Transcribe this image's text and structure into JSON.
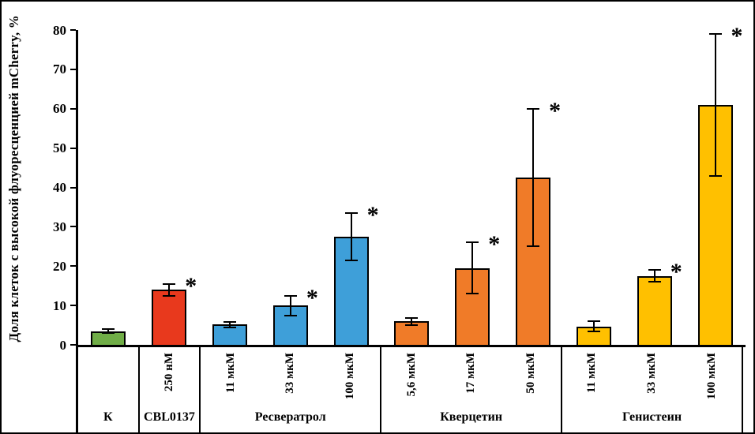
{
  "chart_data": {
    "type": "bar",
    "title": "",
    "ylabel": "Доля клеток с высокой флуоресценцией mCherry, %",
    "xlabel": "",
    "ylim": [
      0,
      80
    ],
    "yticks": [
      0,
      10,
      20,
      30,
      40,
      50,
      60,
      70,
      80
    ],
    "grid": false,
    "legend": "none",
    "significance_marker": "*",
    "groups": [
      {
        "name": "К",
        "color": "#70AD47",
        "bars": [
          {
            "label": "",
            "value": 3.5,
            "error": 0.5,
            "significant": false
          }
        ]
      },
      {
        "name": "CBL0137",
        "color": "#E8391D",
        "bars": [
          {
            "label": "250 нМ",
            "value": 14,
            "error": 1.5,
            "significant": true
          }
        ]
      },
      {
        "name": "Ресвератрол",
        "color": "#3E9FD9",
        "bars": [
          {
            "label": "11 мкМ",
            "value": 5.2,
            "error": 0.7,
            "significant": false
          },
          {
            "label": "33 мкМ",
            "value": 10,
            "error": 2.5,
            "significant": true
          },
          {
            "label": "100 мкМ",
            "value": 27.5,
            "error": 6,
            "significant": true
          }
        ]
      },
      {
        "name": "Кверцетин",
        "color": "#F07B28",
        "bars": [
          {
            "label": "5,6 мкМ",
            "value": 6,
            "error": 0.9,
            "significant": false
          },
          {
            "label": "17 мкМ",
            "value": 19.5,
            "error": 6.5,
            "significant": true
          },
          {
            "label": "50 мкМ",
            "value": 42.5,
            "error": 17.5,
            "significant": true
          }
        ]
      },
      {
        "name": "Генистеин",
        "color": "#FFC000",
        "bars": [
          {
            "label": "11 мкМ",
            "value": 4.7,
            "error": 1.3,
            "significant": false
          },
          {
            "label": "33 мкМ",
            "value": 17.5,
            "error": 1.5,
            "significant": true
          },
          {
            "label": "100 мкМ",
            "value": 61,
            "error": 18,
            "significant": true
          }
        ]
      }
    ]
  }
}
